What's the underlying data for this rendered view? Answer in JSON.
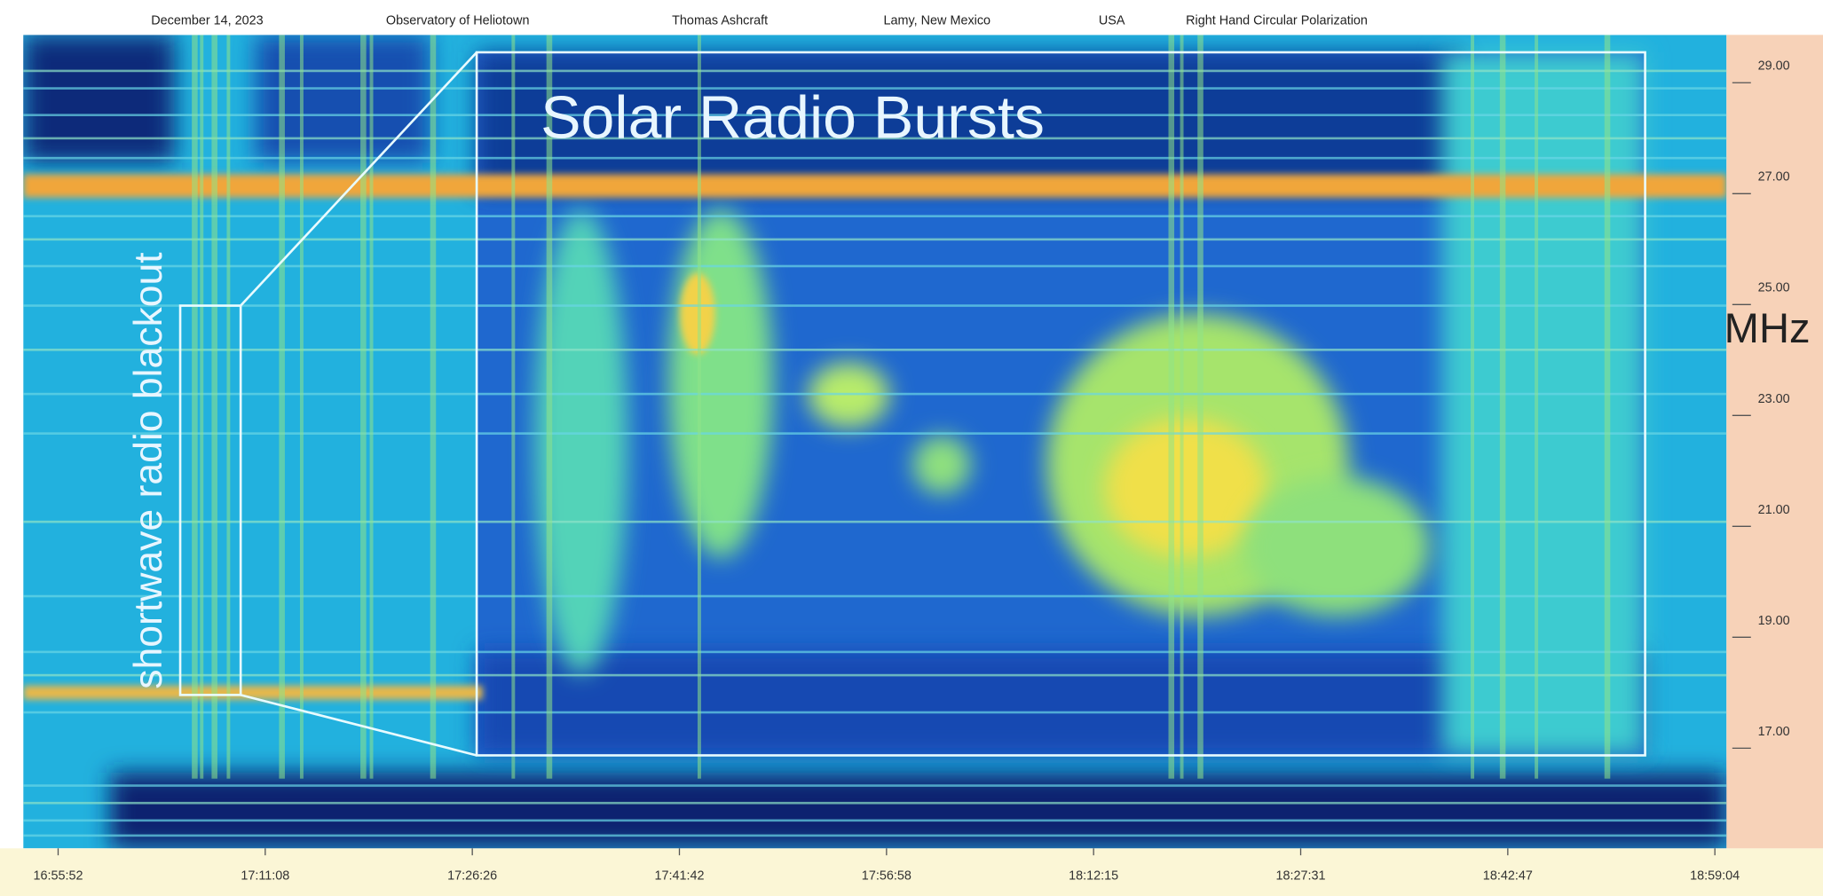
{
  "chart_data": {
    "type": "spectrogram",
    "header": [
      "December 14, 2023",
      "Observatory of Heliotown",
      "Thomas Ashcraft",
      "Lamy, New Mexico",
      "USA",
      "Right Hand Circular Polarization"
    ],
    "ylabel": "MHz",
    "ylim": [
      14.9,
      29.57
    ],
    "yticks": [
      {
        "value": 29,
        "label": "29.00"
      },
      {
        "value": 27,
        "label": "27.00"
      },
      {
        "value": 25,
        "label": "25.00"
      },
      {
        "value": 23,
        "label": "23.00"
      },
      {
        "value": 21,
        "label": "21.00"
      },
      {
        "value": 19,
        "label": "19.00"
      },
      {
        "value": 17,
        "label": "17.00"
      }
    ],
    "xticks": [
      "16:55:52",
      "17:11:08",
      "17:26:26",
      "17:41:42",
      "17:56:58",
      "18:12:15",
      "18:27:31",
      "18:42:47",
      "18:59:04"
    ],
    "annotations": [
      "Solar Radio Bursts",
      "shortwave radio blackout"
    ]
  }
}
